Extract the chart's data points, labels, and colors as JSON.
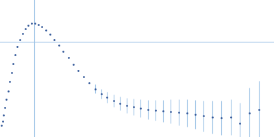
{
  "background_color": "#ffffff",
  "marker_color": "#2F5597",
  "error_color": "#9DC3E6",
  "axis_line_color": "#9DC3E6",
  "data_points": [
    {
      "q": 0.012,
      "iq2": 0.055,
      "err": 0.0
    },
    {
      "q": 0.018,
      "iq2": 0.067,
      "err": 0.0
    },
    {
      "q": 0.025,
      "iq2": 0.085,
      "err": 0.0
    },
    {
      "q": 0.032,
      "iq2": 0.107,
      "err": 0.0
    },
    {
      "q": 0.04,
      "iq2": 0.13,
      "err": 0.0
    },
    {
      "q": 0.048,
      "iq2": 0.155,
      "err": 0.0
    },
    {
      "q": 0.057,
      "iq2": 0.182,
      "err": 0.0
    },
    {
      "q": 0.066,
      "iq2": 0.208,
      "err": 0.0
    },
    {
      "q": 0.076,
      "iq2": 0.234,
      "err": 0.0
    },
    {
      "q": 0.087,
      "iq2": 0.26,
      "err": 0.0
    },
    {
      "q": 0.099,
      "iq2": 0.284,
      "err": 0.0
    },
    {
      "q": 0.112,
      "iq2": 0.305,
      "err": 0.0
    },
    {
      "q": 0.126,
      "iq2": 0.323,
      "err": 0.0
    },
    {
      "q": 0.141,
      "iq2": 0.337,
      "err": 0.0
    },
    {
      "q": 0.157,
      "iq2": 0.347,
      "err": 0.0
    },
    {
      "q": 0.174,
      "iq2": 0.352,
      "err": 0.0
    },
    {
      "q": 0.192,
      "iq2": 0.352,
      "err": 0.0
    },
    {
      "q": 0.211,
      "iq2": 0.349,
      "err": 0.0
    },
    {
      "q": 0.231,
      "iq2": 0.342,
      "err": 0.0
    },
    {
      "q": 0.252,
      "iq2": 0.332,
      "err": 0.0
    },
    {
      "q": 0.274,
      "iq2": 0.32,
      "err": 0.0
    },
    {
      "q": 0.297,
      "iq2": 0.305,
      "err": 0.0
    },
    {
      "q": 0.321,
      "iq2": 0.289,
      "err": 0.0
    },
    {
      "q": 0.346,
      "iq2": 0.271,
      "err": 0.0
    },
    {
      "q": 0.372,
      "iq2": 0.253,
      "err": 0.0
    },
    {
      "q": 0.399,
      "iq2": 0.233,
      "err": 0.0
    },
    {
      "q": 0.427,
      "iq2": 0.214,
      "err": 0.0
    },
    {
      "q": 0.456,
      "iq2": 0.196,
      "err": 0.0
    },
    {
      "q": 0.486,
      "iq2": 0.178,
      "err": 0.0
    },
    {
      "q": 0.517,
      "iq2": 0.161,
      "err": 0.012
    },
    {
      "q": 0.549,
      "iq2": 0.147,
      "err": 0.014
    },
    {
      "q": 0.582,
      "iq2": 0.136,
      "err": 0.016
    },
    {
      "q": 0.616,
      "iq2": 0.127,
      "err": 0.018
    },
    {
      "q": 0.651,
      "iq2": 0.119,
      "err": 0.02
    },
    {
      "q": 0.687,
      "iq2": 0.113,
      "err": 0.022
    },
    {
      "q": 0.724,
      "iq2": 0.108,
      "err": 0.024
    },
    {
      "q": 0.762,
      "iq2": 0.104,
      "err": 0.026
    },
    {
      "q": 0.801,
      "iq2": 0.101,
      "err": 0.028
    },
    {
      "q": 0.841,
      "iq2": 0.099,
      "err": 0.03
    },
    {
      "q": 0.882,
      "iq2": 0.097,
      "err": 0.032
    },
    {
      "q": 0.924,
      "iq2": 0.095,
      "err": 0.035
    },
    {
      "q": 0.967,
      "iq2": 0.092,
      "err": 0.038
    },
    {
      "q": 1.011,
      "iq2": 0.09,
      "err": 0.04
    },
    {
      "q": 1.056,
      "iq2": 0.087,
      "err": 0.042
    },
    {
      "q": 1.102,
      "iq2": 0.082,
      "err": 0.045
    },
    {
      "q": 1.149,
      "iq2": 0.078,
      "err": 0.048
    },
    {
      "q": 1.197,
      "iq2": 0.077,
      "err": 0.05
    },
    {
      "q": 1.246,
      "iq2": 0.078,
      "err": 0.052
    },
    {
      "q": 1.296,
      "iq2": 0.06,
      "err": 0.06
    },
    {
      "q": 1.347,
      "iq2": 0.09,
      "err": 0.075
    },
    {
      "q": 1.399,
      "iq2": 0.1,
      "err": 0.085
    }
  ],
  "vline_x": 0.19,
  "hline_y": 0.298,
  "xlim": [
    0.005,
    1.48
  ],
  "ylim": [
    0.02,
    0.42
  ]
}
